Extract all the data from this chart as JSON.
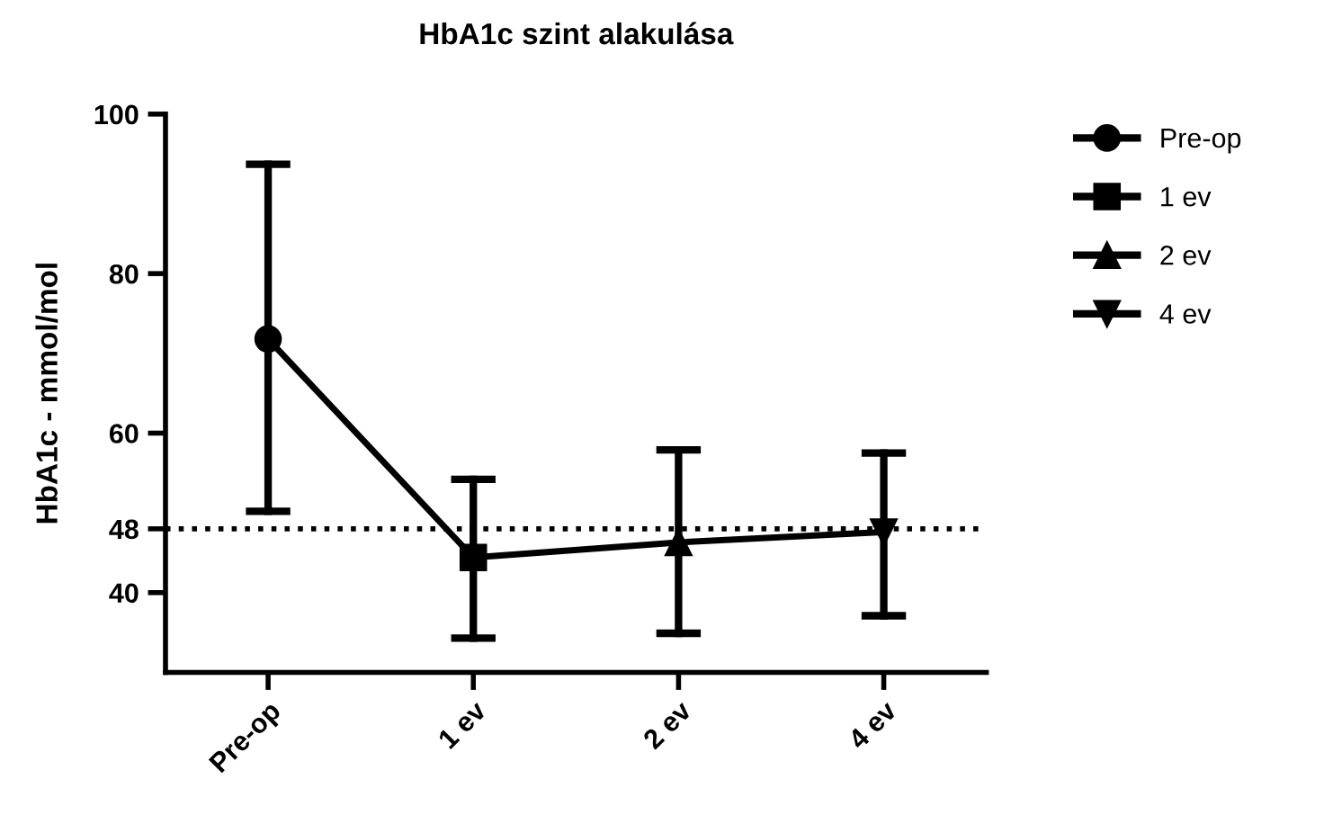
{
  "chart_data": {
    "type": "line",
    "title": "HbA1c szint alakulása",
    "ylabel": "HbA1c - mmol/mol",
    "categories": [
      "Pre-op",
      "1 ev",
      "2 ev",
      "4 ev"
    ],
    "ylim": [
      30,
      100
    ],
    "yticks": [
      40,
      48,
      60,
      80,
      100
    ],
    "grid": false,
    "legend": "top right",
    "ref_lines": [
      {
        "axis": "y",
        "value": 48,
        "label": null,
        "color": "#000000",
        "line_style": "dotted"
      }
    ],
    "series": [
      {
        "color": "#000000",
        "marker": "none",
        "line_style": "solid",
        "values": [
          71.8,
          44.4,
          46.3,
          47.6
        ]
      },
      {
        "name": "Pre-op",
        "color": "#000000",
        "marker": "circle",
        "values": [
          71.8,
          null,
          null,
          null
        ],
        "errors": [
          [
            50.2,
            93.7
          ],
          null,
          null,
          null
        ]
      },
      {
        "name": "1 ev",
        "color": "#000000",
        "marker": "square",
        "values": [
          null,
          44.4,
          null,
          null
        ],
        "errors": [
          null,
          [
            34.3,
            54.2
          ],
          null,
          null
        ]
      },
      {
        "name": "2 ev",
        "color": "#000000",
        "marker": "triangle",
        "values": [
          null,
          null,
          46.3,
          null
        ],
        "errors": [
          null,
          null,
          [
            34.9,
            57.9
          ],
          null
        ]
      },
      {
        "name": "4 ev",
        "color": "#000000",
        "marker": "triangle_down",
        "values": [
          null,
          null,
          null,
          47.6
        ],
        "errors": [
          null,
          null,
          null,
          [
            37.1,
            57.5
          ]
        ]
      }
    ]
  }
}
